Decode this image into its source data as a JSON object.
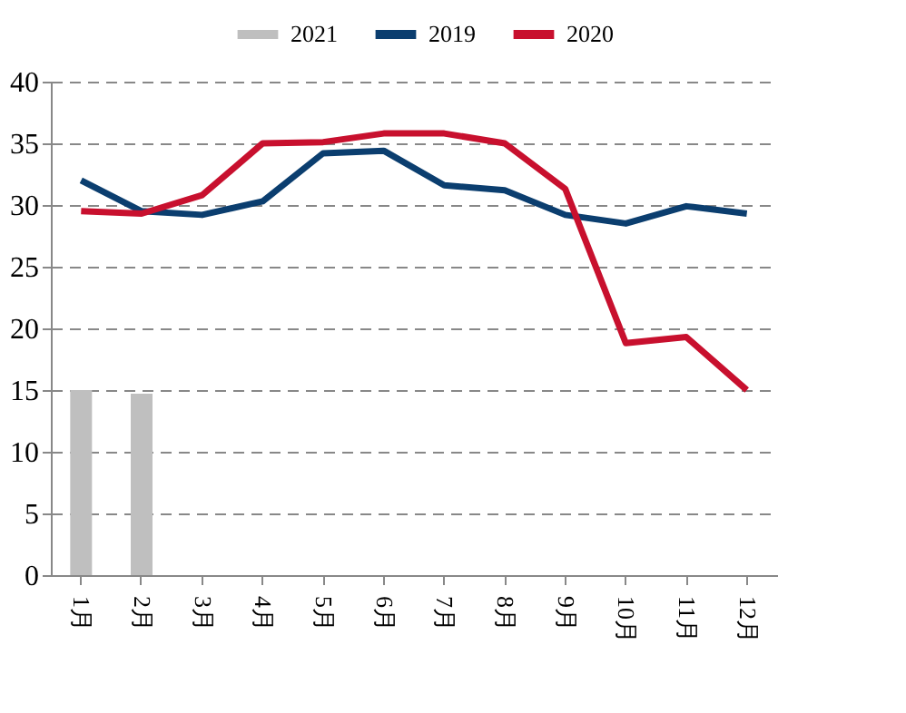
{
  "chart_data": {
    "type": "line",
    "categories": [
      "1月",
      "2月",
      "3月",
      "4月",
      "5月",
      "6月",
      "7月",
      "8月",
      "9月",
      "10月",
      "11月",
      "12月"
    ],
    "series": [
      {
        "name": "2021",
        "type": "bar",
        "color": "#bfbfbf",
        "values": [
          15,
          14.7,
          null,
          null,
          null,
          null,
          null,
          null,
          null,
          null,
          null,
          null
        ]
      },
      {
        "name": "2019",
        "color": "#0b3e6f",
        "values": [
          32,
          29.5,
          29.2,
          30.3,
          34.2,
          34.4,
          31.6,
          31.2,
          29.2,
          28.5,
          29.9,
          29.3
        ]
      },
      {
        "name": "2020",
        "color": "#c8102e",
        "values": [
          29.5,
          29.3,
          30.8,
          35.0,
          35.1,
          35.8,
          35.8,
          35.0,
          31.3,
          18.8,
          19.3,
          15.0
        ]
      }
    ],
    "ylim": [
      0,
      40
    ],
    "yticks": [
      0,
      5,
      10,
      15,
      20,
      25,
      30,
      35,
      40
    ],
    "grid": "y",
    "legend": "top",
    "marker": "none",
    "line_style": "solid"
  }
}
